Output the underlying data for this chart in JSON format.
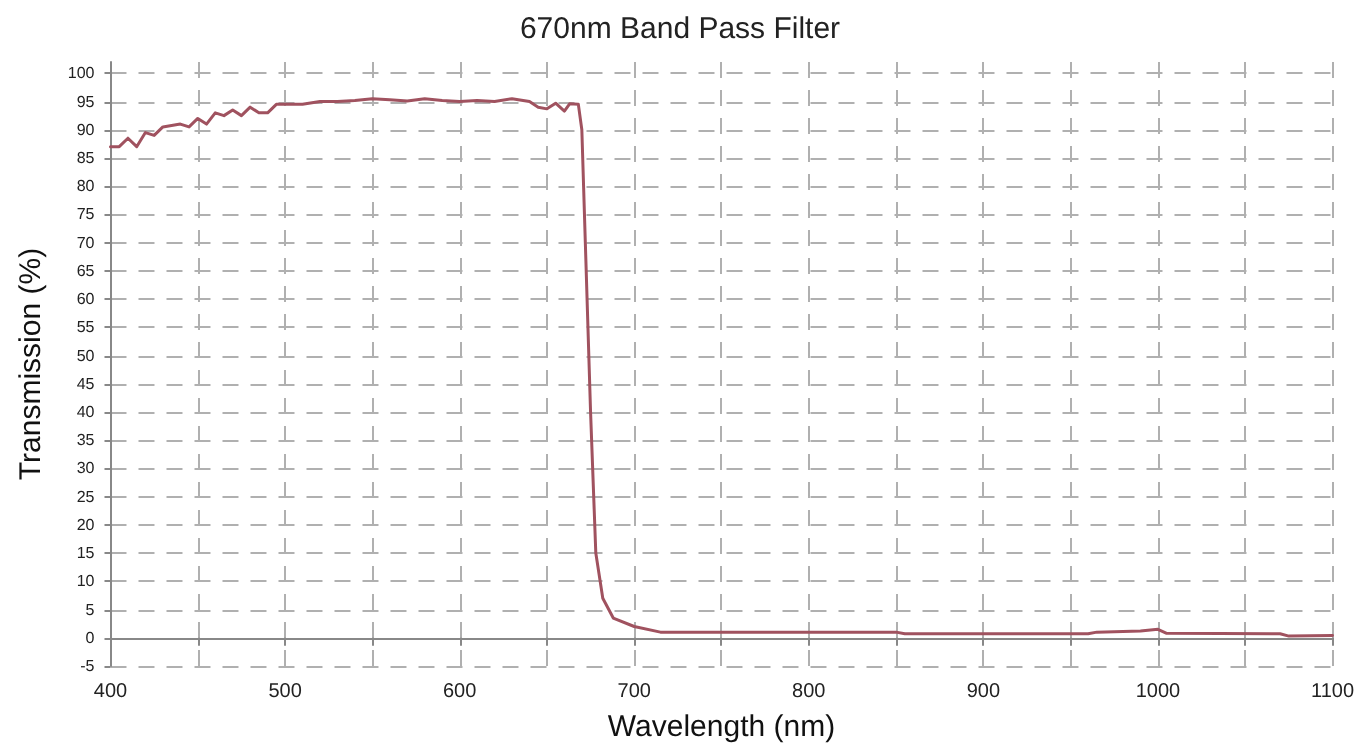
{
  "chart_data": {
    "type": "line",
    "title": "670nm Band Pass Filter",
    "xlabel": "Wavelength (nm)",
    "ylabel": "Transmission (%)",
    "xlim": [
      400,
      1100
    ],
    "xticks": [
      400,
      {
        "value": 450,
        "label": null
      },
      500,
      {
        "value": 550,
        "label": null
      },
      600,
      {
        "value": 650,
        "label": null
      },
      700,
      {
        "value": 750,
        "label": null
      },
      800,
      {
        "value": 850,
        "label": null
      },
      900,
      {
        "value": 950,
        "label": null
      },
      1000,
      {
        "value": 1050,
        "label": null
      },
      1100
    ],
    "ylim": [
      -5,
      102
    ],
    "yticks": [
      -5,
      0,
      5,
      10,
      15,
      20,
      25,
      30,
      35,
      40,
      45,
      50,
      55,
      60,
      65,
      70,
      75,
      80,
      85,
      90,
      95,
      100
    ],
    "grid": true,
    "marker": "none",
    "line_style": "solid",
    "series": [
      {
        "color": "#a0525f",
        "x": [
          400,
          405,
          410,
          415,
          420,
          425,
          430,
          440,
          445,
          450,
          455,
          460,
          465,
          470,
          475,
          480,
          485,
          490,
          495,
          500,
          510,
          520,
          530,
          540,
          550,
          560,
          570,
          580,
          590,
          600,
          610,
          620,
          630,
          640,
          645,
          650,
          655,
          660,
          663,
          668,
          670,
          672,
          675,
          678,
          682,
          688,
          700,
          715,
          850,
          855,
          960,
          965,
          990,
          1000,
          1005,
          1070,
          1075,
          1100
        ],
        "values": [
          87,
          87,
          88.5,
          87,
          89.5,
          89,
          90.5,
          91,
          90.5,
          92,
          91,
          93,
          92.5,
          93.5,
          92.5,
          94,
          93,
          93,
          94.5,
          94.5,
          94.5,
          95,
          95,
          95.2,
          95.5,
          95.3,
          95.1,
          95.5,
          95.2,
          95,
          95.2,
          95,
          95.5,
          95,
          94,
          93.7,
          94.7,
          93.3,
          94.6,
          94.5,
          90,
          70,
          40,
          15,
          7,
          3.5,
          2,
          1,
          1,
          0.7,
          0.7,
          1,
          1.2,
          1.5,
          0.8,
          0.7,
          0.3,
          0.4
        ]
      }
    ]
  }
}
